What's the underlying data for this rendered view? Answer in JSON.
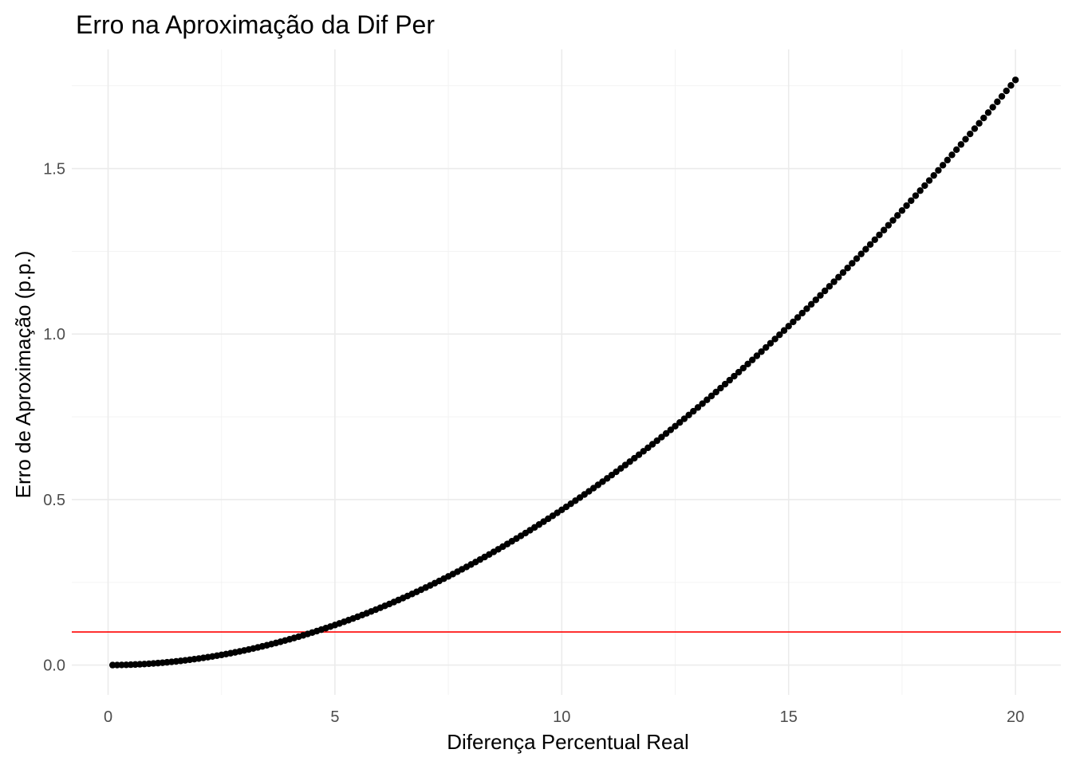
{
  "chart_data": {
    "type": "scatter",
    "title": "Erro na Aproximação da Dif Per",
    "xlabel": "Diferença Percentual Real",
    "ylabel": "Erro de Aproximação (p.p.)",
    "xlim": [
      -0.8,
      21.0
    ],
    "ylim": [
      -0.09,
      1.86
    ],
    "x_ticks": [
      0,
      5,
      10,
      15,
      20
    ],
    "x_tick_labels": [
      "0",
      "5",
      "10",
      "15",
      "20"
    ],
    "y_ticks": [
      0.0,
      0.5,
      1.0,
      1.5
    ],
    "y_tick_labels": [
      "0.0",
      "0.5",
      "1.0",
      "1.5"
    ],
    "grid": true,
    "legend": "none",
    "series": [
      {
        "x_start": 0.1,
        "x_end": 20.0,
        "x_step": 0.1,
        "y_formula": "100*ln(1+x/100) subtracted from x (x - 100*ln(1 + x/100))",
        "color": "#000000"
      }
    ],
    "reference_line": {
      "orientation": "horizontal",
      "y": 0.1,
      "color": "#ff0000"
    }
  }
}
